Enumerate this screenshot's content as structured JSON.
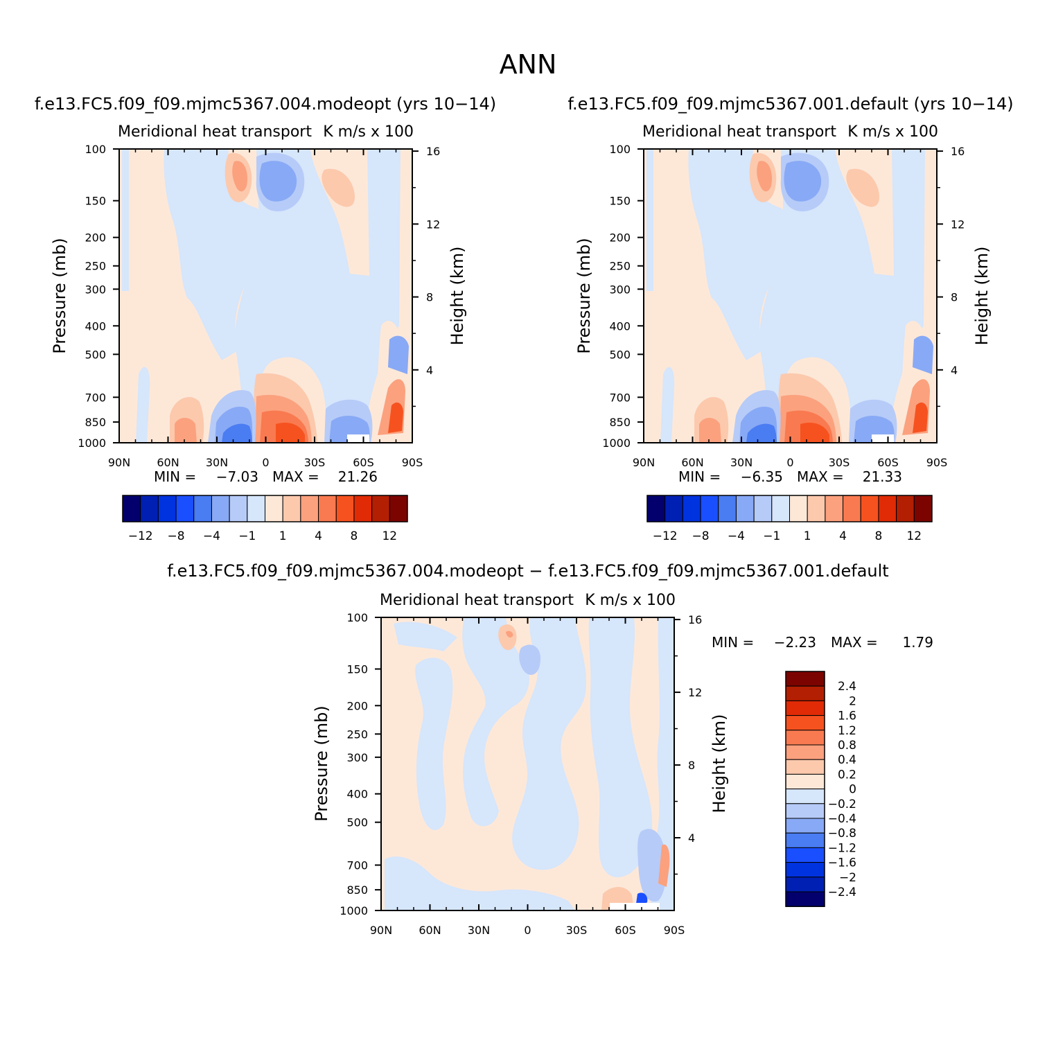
{
  "figure": {
    "season": "ANN",
    "panels": [
      {
        "title": "f.e13.FC5.f09_f09.mjmc5367.004.modeopt (yrs 10−14)",
        "left_string": "Meridional heat transport",
        "right_string": "K m/s x 100",
        "ylabel": "Pressure (mb)",
        "y2label": "Height (km)",
        "min_label": "MIN =",
        "min_value": "−7.03",
        "max_label": "MAX =",
        "max_value": "21.26"
      },
      {
        "title": "f.e13.FC5.f09_f09.mjmc5367.001.default (yrs 10−14)",
        "left_string": "Meridional heat transport",
        "right_string": "K m/s x 100",
        "ylabel": "Pressure (mb)",
        "y2label": "Height (km)",
        "min_label": "MIN =",
        "min_value": "−6.35",
        "max_label": "MAX =",
        "max_value": "21.33"
      },
      {
        "title": "f.e13.FC5.f09_f09.mjmc5367.004.modeopt − f.e13.FC5.f09_f09.mjmc5367.001.default",
        "left_string": "Meridional heat transport",
        "right_string": "K m/s x 100",
        "ylabel": "Pressure (mb)",
        "y2label": "Height (km)",
        "min_label": "MIN =",
        "min_value": "−2.23",
        "max_label": "MAX =",
        "max_value": "1.79"
      }
    ],
    "x_ticks": [
      "90N",
      "60N",
      "30N",
      "0",
      "30S",
      "60S",
      "90S"
    ],
    "pressure_ticks": [
      "100",
      "150",
      "200",
      "250",
      "300",
      "400",
      "500",
      "700",
      "850",
      "1000"
    ],
    "height_ticks": [
      "16",
      "12",
      "8",
      "4"
    ],
    "colorbar_main": {
      "colors": [
        "#03006d",
        "#0020b3",
        "#0033e0",
        "#1a4fff",
        "#4a7cf2",
        "#88a9f5",
        "#b6cbf8",
        "#d6e6fb",
        "#fde8d8",
        "#fcc9ad",
        "#fba17e",
        "#f97a50",
        "#f6521f",
        "#e02b06",
        "#b31f02",
        "#7c0400"
      ],
      "labels": [
        "−12",
        "−8",
        "−4",
        "−1",
        "1",
        "4",
        "8",
        "12"
      ]
    },
    "colorbar_diff": {
      "colors": [
        "#7c0400",
        "#b31f02",
        "#e02b06",
        "#f6521f",
        "#f97a50",
        "#fba17e",
        "#fcc9ad",
        "#fde8d8",
        "#d6e6fb",
        "#b6cbf8",
        "#88a9f5",
        "#4a7cf2",
        "#1a4fff",
        "#0033e0",
        "#0020b3",
        "#03006d"
      ],
      "labels": [
        "2.4",
        "2",
        "1.6",
        "1.2",
        "0.8",
        "0.4",
        "0.2",
        "0",
        "−0.2",
        "−0.4",
        "−0.8",
        "−1.2",
        "−1.6",
        "−2",
        "−2.4"
      ]
    }
  }
}
